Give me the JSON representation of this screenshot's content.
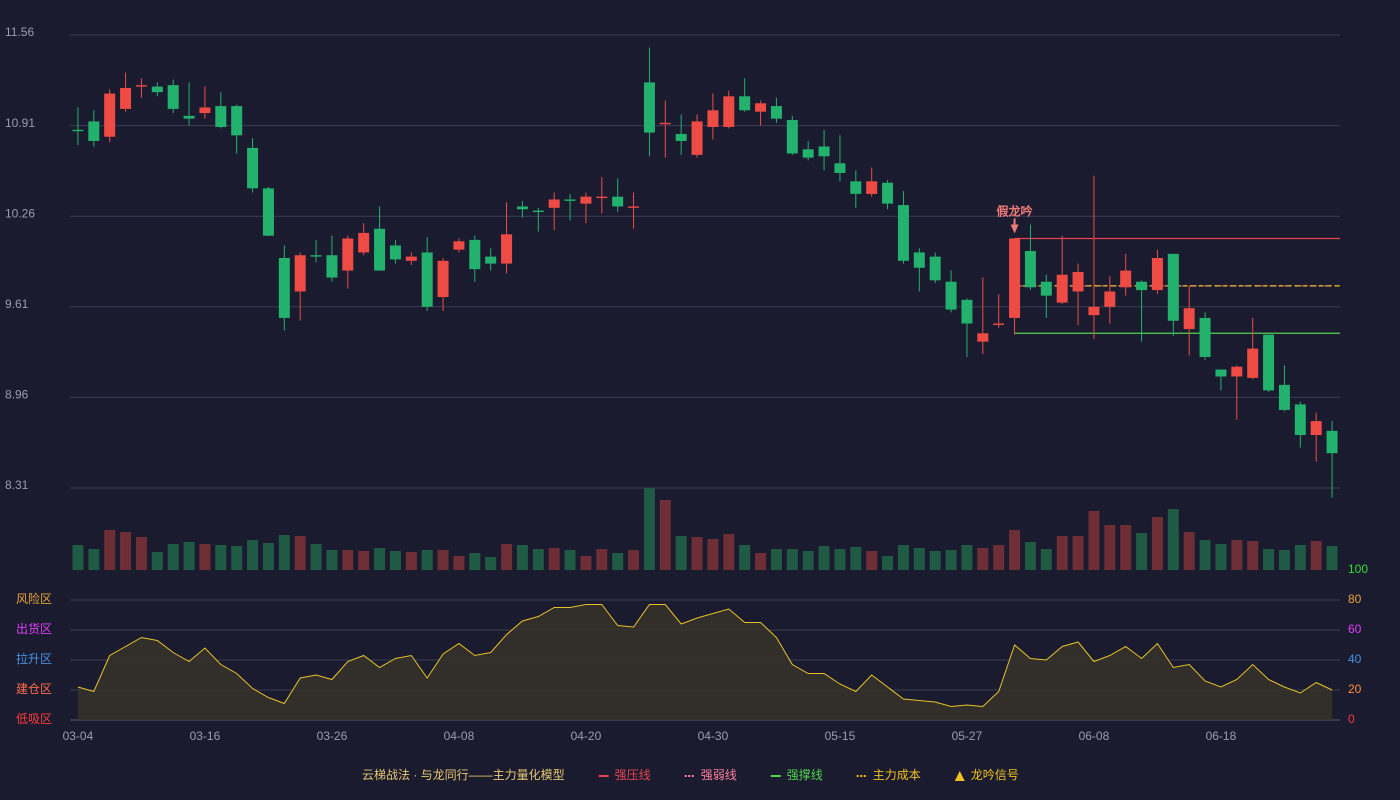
{
  "chart_data": {
    "type": "candlestick",
    "title": "云梯战法 · 与龙同行——主力量化模型",
    "categories": [
      "03-04",
      null,
      null,
      null,
      null,
      null,
      null,
      null,
      "03-16",
      null,
      null,
      null,
      null,
      null,
      null,
      null,
      "03-26",
      null,
      null,
      null,
      null,
      null,
      null,
      null,
      "04-08",
      null,
      null,
      null,
      null,
      null,
      null,
      null,
      "04-20",
      null,
      null,
      null,
      null,
      null,
      null,
      null,
      "04-30",
      null,
      null,
      null,
      null,
      null,
      null,
      null,
      "05-15",
      null,
      null,
      null,
      null,
      null,
      null,
      null,
      "05-27",
      null,
      null,
      null,
      null,
      null,
      null,
      null,
      "06-08",
      null,
      null,
      null,
      null,
      null,
      null,
      null,
      "06-18",
      null,
      null,
      null,
      null,
      null,
      null,
      null
    ],
    "open": [
      10.88,
      10.94,
      10.83,
      11.03,
      11.19,
      11.19,
      11.2,
      10.98,
      11.0,
      11.05,
      11.05,
      10.75,
      10.46,
      9.96,
      9.72,
      9.98,
      9.98,
      9.87,
      10.0,
      10.17,
      10.05,
      9.94,
      10.0,
      9.68,
      10.02,
      10.09,
      9.97,
      9.92,
      10.33,
      10.3,
      10.32,
      10.38,
      10.35,
      10.39,
      10.4,
      10.32,
      11.22,
      10.92,
      10.85,
      10.7,
      10.9,
      10.9,
      11.12,
      11.01,
      11.05,
      10.95,
      10.74,
      10.76,
      10.64,
      10.51,
      10.42,
      10.5,
      10.34,
      10.0,
      9.97,
      9.79,
      9.66,
      9.36,
      9.48,
      9.53,
      10.01,
      9.79,
      9.64,
      9.72,
      9.55,
      9.61,
      9.75,
      9.79,
      9.73,
      9.99,
      9.45,
      9.53,
      9.16,
      9.11,
      9.1,
      9.41,
      9.05,
      8.91,
      8.69,
      8.72
    ],
    "high": [
      11.04,
      11.02,
      11.17,
      11.29,
      11.25,
      11.22,
      11.24,
      11.22,
      11.19,
      11.15,
      11.06,
      10.82,
      10.47,
      10.05,
      10.0,
      10.09,
      10.12,
      10.12,
      10.21,
      10.33,
      10.09,
      10.0,
      10.11,
      9.96,
      10.1,
      10.12,
      10.03,
      10.36,
      10.37,
      10.32,
      10.43,
      10.42,
      10.43,
      10.54,
      10.53,
      10.43,
      11.47,
      11.09,
      10.99,
      10.99,
      11.14,
      11.16,
      11.25,
      11.09,
      11.11,
      10.98,
      10.8,
      10.88,
      10.84,
      10.59,
      10.61,
      10.52,
      10.44,
      10.03,
      10.0,
      9.87,
      9.67,
      9.82,
      9.7,
      10.1,
      10.2,
      9.84,
      10.12,
      9.92,
      10.55,
      9.83,
      9.99,
      9.8,
      10.02,
      9.99,
      9.76,
      9.57,
      9.16,
      9.19,
      9.53,
      9.41,
      9.19,
      8.93,
      8.85,
      8.79
    ],
    "low": [
      10.77,
      10.76,
      10.79,
      11.01,
      11.11,
      11.12,
      11.0,
      10.91,
      10.96,
      10.89,
      10.71,
      10.43,
      10.12,
      9.44,
      9.51,
      9.93,
      9.79,
      9.74,
      9.98,
      9.87,
      9.92,
      9.91,
      9.58,
      9.58,
      10.0,
      9.79,
      9.87,
      9.85,
      10.25,
      10.15,
      10.16,
      10.23,
      10.21,
      10.28,
      10.29,
      10.17,
      10.69,
      10.68,
      10.7,
      10.68,
      10.81,
      10.89,
      11.01,
      10.91,
      10.93,
      10.7,
      10.66,
      10.59,
      10.51,
      10.32,
      10.4,
      10.31,
      9.92,
      9.72,
      9.78,
      9.57,
      9.25,
      9.27,
      9.46,
      9.41,
      9.73,
      9.53,
      9.63,
      9.48,
      9.38,
      9.49,
      9.69,
      9.36,
      9.7,
      9.4,
      9.26,
      9.23,
      9.01,
      8.8,
      9.09,
      9.0,
      8.86,
      8.6,
      8.5,
      8.24
    ],
    "close": [
      10.87,
      10.8,
      11.14,
      11.18,
      11.2,
      11.15,
      11.03,
      10.96,
      11.04,
      10.9,
      10.84,
      10.46,
      10.12,
      9.53,
      9.98,
      9.97,
      9.82,
      10.1,
      10.14,
      9.87,
      9.95,
      9.97,
      9.61,
      9.94,
      10.08,
      9.88,
      9.92,
      10.13,
      10.31,
      10.29,
      10.38,
      10.37,
      10.4,
      10.4,
      10.33,
      10.33,
      10.86,
      10.93,
      10.8,
      10.94,
      11.02,
      11.12,
      11.02,
      11.07,
      10.96,
      10.71,
      10.68,
      10.69,
      10.57,
      10.42,
      10.51,
      10.35,
      9.94,
      9.89,
      9.8,
      9.59,
      9.49,
      9.42,
      9.49,
      10.1,
      9.75,
      9.69,
      9.84,
      9.86,
      9.61,
      9.72,
      9.87,
      9.73,
      9.96,
      9.51,
      9.6,
      9.25,
      9.11,
      9.18,
      9.31,
      9.01,
      8.87,
      8.69,
      8.79,
      8.56
    ],
    "up_color": "#ef4b45",
    "down_color": "#23b26d",
    "ylim": [
      8.31,
      11.56
    ],
    "yticks": [
      8.31,
      8.96,
      9.61,
      10.26,
      10.91,
      11.56
    ],
    "grid": true,
    "lines": [
      {
        "name": "强压线",
        "value": 10.1,
        "from": 59,
        "color": "#e8434f",
        "style": "solid"
      },
      {
        "name": "强弱线",
        "value": 9.76,
        "from": 59,
        "color": "#ff7fa0",
        "style": "dotted"
      },
      {
        "name": "强撑线",
        "value": 9.42,
        "from": 59,
        "color": "#52d452",
        "style": "solid"
      },
      {
        "name": "主力成本",
        "value": 9.76,
        "from": 59,
        "color": "#f0c020",
        "style": "dashed"
      }
    ],
    "signals": {
      "name": "龙吟信号",
      "color": "#f0c020",
      "points": [
        {
          "label": "假龙吟",
          "at": 59,
          "color": "#f07a7a"
        }
      ]
    },
    "volume": {
      "values": [
        25,
        21,
        40,
        38,
        33,
        18,
        26,
        28,
        26,
        25,
        24,
        30,
        27,
        35,
        34,
        26,
        20,
        20,
        19,
        22,
        19,
        18,
        20,
        20,
        14,
        17,
        13,
        26,
        25,
        21,
        22,
        20,
        14,
        21,
        17,
        20,
        82,
        70,
        34,
        33,
        31,
        36,
        25,
        17,
        21,
        21,
        19,
        24,
        21,
        23,
        19,
        14,
        25,
        22,
        19,
        20,
        25,
        22,
        25,
        40,
        28,
        21,
        34,
        34,
        59,
        45,
        45,
        37,
        53,
        61,
        38,
        30,
        26,
        30,
        29,
        21,
        20,
        25,
        29,
        24
      ],
      "up_color": "#6e2e36",
      "down_color": "#1f5a44"
    },
    "indicator": {
      "values": [
        22,
        19,
        43,
        49,
        55,
        53,
        45,
        39,
        48,
        37,
        31,
        21,
        15,
        11,
        28,
        30,
        27,
        39,
        43,
        35,
        41,
        43,
        28,
        44,
        51,
        43,
        45,
        57,
        66,
        69,
        75,
        75,
        77,
        77,
        63,
        62,
        77,
        77,
        64,
        68,
        71,
        74,
        65,
        65,
        55,
        37,
        31,
        31,
        24,
        19,
        30,
        22,
        14,
        13,
        12,
        9,
        10,
        9,
        19,
        50,
        41,
        40,
        49,
        52,
        39,
        43,
        49,
        41,
        51,
        35,
        37,
        26,
        22,
        27,
        37,
        27,
        22,
        18,
        25,
        20
      ],
      "color": "#e6c229",
      "fill": "#35322a",
      "ylim": [
        0,
        100
      ],
      "yticks": [
        0,
        20,
        40,
        60,
        80,
        100
      ],
      "tick_colors": [
        "#ff3b3b",
        "#ff8c3a",
        "#4a90e2",
        "#e040fb",
        "#e8a33c",
        "#33dd33"
      ],
      "zones": [
        {
          "label": "低吸区",
          "value": 0,
          "color": "#ff3b3b"
        },
        {
          "label": "建仓区",
          "value": 20,
          "color": "#ff6b4a"
        },
        {
          "label": "拉升区",
          "value": 40,
          "color": "#4a90e2"
        },
        {
          "label": "出货区",
          "value": 60,
          "color": "#e040fb"
        },
        {
          "label": "风险区",
          "value": 80,
          "color": "#e8a33c"
        }
      ]
    }
  }
}
